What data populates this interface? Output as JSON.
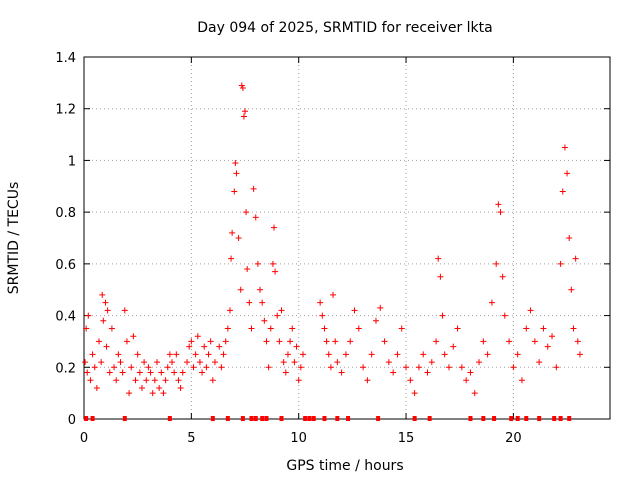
{
  "chart_data": {
    "type": "scatter",
    "title": "Day 094 of 2025, SRMTID for receiver lkta",
    "xlabel": "GPS time / hours",
    "ylabel": "SRMTID / TECUs",
    "xlim": [
      0,
      24.5
    ],
    "ylim": [
      0,
      1.4
    ],
    "xticks": [
      0,
      5,
      10,
      15,
      20
    ],
    "xtick_labels": [
      "0",
      "5",
      "10",
      "15",
      "20"
    ],
    "yticks": [
      0,
      0.2,
      0.4,
      0.6,
      0.8,
      1.0,
      1.2,
      1.4
    ],
    "ytick_labels": [
      "0",
      "0.2",
      "0.4",
      "0.6",
      "0.8",
      "1",
      "1.2",
      "1.4"
    ],
    "grid": true,
    "marker": "plus",
    "color": "#ff0000",
    "series": [
      {
        "name": "SRMTID",
        "points": [
          [
            0.05,
            0.22
          ],
          [
            0.1,
            0.35
          ],
          [
            0.15,
            0.18
          ],
          [
            0.2,
            0.4
          ],
          [
            0.3,
            0.15
          ],
          [
            0.4,
            0.25
          ],
          [
            0.5,
            0.2
          ],
          [
            0.6,
            0.12
          ],
          [
            0.7,
            0.3
          ],
          [
            0.8,
            0.22
          ],
          [
            0.85,
            0.48
          ],
          [
            0.9,
            0.38
          ],
          [
            1.0,
            0.45
          ],
          [
            1.05,
            0.28
          ],
          [
            1.1,
            0.42
          ],
          [
            1.2,
            0.18
          ],
          [
            1.3,
            0.35
          ],
          [
            1.4,
            0.2
          ],
          [
            1.5,
            0.15
          ],
          [
            1.6,
            0.25
          ],
          [
            1.7,
            0.22
          ],
          [
            1.8,
            0.18
          ],
          [
            1.9,
            0.42
          ],
          [
            2.0,
            0.3
          ],
          [
            2.1,
            0.1
          ],
          [
            2.2,
            0.2
          ],
          [
            2.3,
            0.32
          ],
          [
            2.4,
            0.15
          ],
          [
            2.5,
            0.25
          ],
          [
            2.6,
            0.18
          ],
          [
            2.7,
            0.12
          ],
          [
            2.8,
            0.22
          ],
          [
            2.9,
            0.15
          ],
          [
            3.0,
            0.2
          ],
          [
            3.1,
            0.18
          ],
          [
            3.2,
            0.1
          ],
          [
            3.3,
            0.15
          ],
          [
            3.4,
            0.22
          ],
          [
            3.5,
            0.12
          ],
          [
            3.6,
            0.18
          ],
          [
            3.7,
            0.1
          ],
          [
            3.8,
            0.15
          ],
          [
            3.9,
            0.2
          ],
          [
            4.0,
            0.25
          ],
          [
            4.1,
            0.22
          ],
          [
            4.2,
            0.18
          ],
          [
            4.3,
            0.25
          ],
          [
            4.4,
            0.15
          ],
          [
            4.5,
            0.12
          ],
          [
            4.6,
            0.18
          ],
          [
            4.8,
            0.22
          ],
          [
            4.9,
            0.28
          ],
          [
            5.0,
            0.3
          ],
          [
            5.1,
            0.2
          ],
          [
            5.2,
            0.25
          ],
          [
            5.3,
            0.32
          ],
          [
            5.4,
            0.22
          ],
          [
            5.5,
            0.18
          ],
          [
            5.6,
            0.28
          ],
          [
            5.7,
            0.2
          ],
          [
            5.8,
            0.25
          ],
          [
            5.9,
            0.3
          ],
          [
            6.0,
            0.15
          ],
          [
            6.1,
            0.22
          ],
          [
            6.3,
            0.28
          ],
          [
            6.4,
            0.2
          ],
          [
            6.5,
            0.25
          ],
          [
            6.6,
            0.3
          ],
          [
            6.7,
            0.35
          ],
          [
            6.8,
            0.42
          ],
          [
            6.85,
            0.62
          ],
          [
            6.9,
            0.72
          ],
          [
            7.0,
            0.88
          ],
          [
            7.05,
            0.99
          ],
          [
            7.1,
            0.95
          ],
          [
            7.2,
            0.7
          ],
          [
            7.3,
            0.5
          ],
          [
            7.35,
            1.29
          ],
          [
            7.4,
            1.28
          ],
          [
            7.45,
            1.17
          ],
          [
            7.5,
            1.19
          ],
          [
            7.55,
            0.8
          ],
          [
            7.6,
            0.58
          ],
          [
            7.7,
            0.45
          ],
          [
            7.8,
            0.35
          ],
          [
            7.9,
            0.89
          ],
          [
            8.0,
            0.78
          ],
          [
            8.1,
            0.6
          ],
          [
            8.2,
            0.5
          ],
          [
            8.3,
            0.45
          ],
          [
            8.4,
            0.38
          ],
          [
            8.5,
            0.3
          ],
          [
            8.6,
            0.2
          ],
          [
            8.7,
            0.35
          ],
          [
            8.8,
            0.6
          ],
          [
            8.85,
            0.74
          ],
          [
            8.9,
            0.57
          ],
          [
            9.0,
            0.4
          ],
          [
            9.1,
            0.3
          ],
          [
            9.2,
            0.42
          ],
          [
            9.3,
            0.22
          ],
          [
            9.4,
            0.18
          ],
          [
            9.5,
            0.25
          ],
          [
            9.6,
            0.3
          ],
          [
            9.7,
            0.35
          ],
          [
            9.8,
            0.22
          ],
          [
            9.9,
            0.28
          ],
          [
            10.0,
            0.15
          ],
          [
            10.1,
            0.2
          ],
          [
            10.2,
            0.25
          ],
          [
            11.0,
            0.45
          ],
          [
            11.1,
            0.4
          ],
          [
            11.2,
            0.35
          ],
          [
            11.3,
            0.3
          ],
          [
            11.4,
            0.25
          ],
          [
            11.5,
            0.2
          ],
          [
            11.6,
            0.48
          ],
          [
            11.7,
            0.3
          ],
          [
            11.8,
            0.22
          ],
          [
            12.0,
            0.18
          ],
          [
            12.2,
            0.25
          ],
          [
            12.4,
            0.3
          ],
          [
            12.6,
            0.42
          ],
          [
            12.8,
            0.35
          ],
          [
            13.0,
            0.2
          ],
          [
            13.2,
            0.15
          ],
          [
            13.4,
            0.25
          ],
          [
            13.6,
            0.38
          ],
          [
            13.8,
            0.43
          ],
          [
            14.0,
            0.3
          ],
          [
            14.2,
            0.22
          ],
          [
            14.4,
            0.18
          ],
          [
            14.6,
            0.25
          ],
          [
            14.8,
            0.35
          ],
          [
            15.0,
            0.2
          ],
          [
            15.2,
            0.15
          ],
          [
            15.4,
            0.1
          ],
          [
            15.6,
            0.2
          ],
          [
            15.8,
            0.25
          ],
          [
            16.0,
            0.18
          ],
          [
            16.2,
            0.22
          ],
          [
            16.4,
            0.3
          ],
          [
            16.5,
            0.62
          ],
          [
            16.6,
            0.55
          ],
          [
            16.7,
            0.4
          ],
          [
            16.8,
            0.25
          ],
          [
            17.0,
            0.2
          ],
          [
            17.2,
            0.28
          ],
          [
            17.4,
            0.35
          ],
          [
            17.6,
            0.2
          ],
          [
            17.8,
            0.15
          ],
          [
            18.0,
            0.18
          ],
          [
            18.2,
            0.1
          ],
          [
            18.4,
            0.22
          ],
          [
            18.6,
            0.3
          ],
          [
            18.8,
            0.25
          ],
          [
            19.0,
            0.45
          ],
          [
            19.2,
            0.6
          ],
          [
            19.3,
            0.83
          ],
          [
            19.4,
            0.8
          ],
          [
            19.5,
            0.55
          ],
          [
            19.6,
            0.4
          ],
          [
            19.8,
            0.3
          ],
          [
            20.0,
            0.2
          ],
          [
            20.2,
            0.25
          ],
          [
            20.4,
            0.15
          ],
          [
            20.6,
            0.35
          ],
          [
            20.8,
            0.42
          ],
          [
            21.0,
            0.3
          ],
          [
            21.2,
            0.22
          ],
          [
            21.4,
            0.35
          ],
          [
            21.6,
            0.28
          ],
          [
            21.8,
            0.32
          ],
          [
            22.0,
            0.2
          ],
          [
            22.2,
            0.6
          ],
          [
            22.3,
            0.88
          ],
          [
            22.4,
            1.05
          ],
          [
            22.5,
            0.95
          ],
          [
            22.6,
            0.7
          ],
          [
            22.7,
            0.5
          ],
          [
            22.8,
            0.35
          ],
          [
            22.9,
            0.62
          ],
          [
            23.0,
            0.3
          ],
          [
            23.1,
            0.25
          ]
        ]
      }
    ],
    "baseline_markers_x": [
      0.1,
      0.4,
      1.9,
      4.0,
      6.0,
      6.7,
      7.4,
      7.8,
      8.0,
      8.3,
      8.5,
      9.2,
      10.3,
      10.5,
      10.7,
      11.2,
      11.8,
      12.3,
      13.7,
      15.4,
      16.1,
      18.0,
      18.6,
      19.1,
      19.9,
      20.2,
      20.6,
      21.2,
      21.9,
      22.2,
      22.6
    ]
  }
}
